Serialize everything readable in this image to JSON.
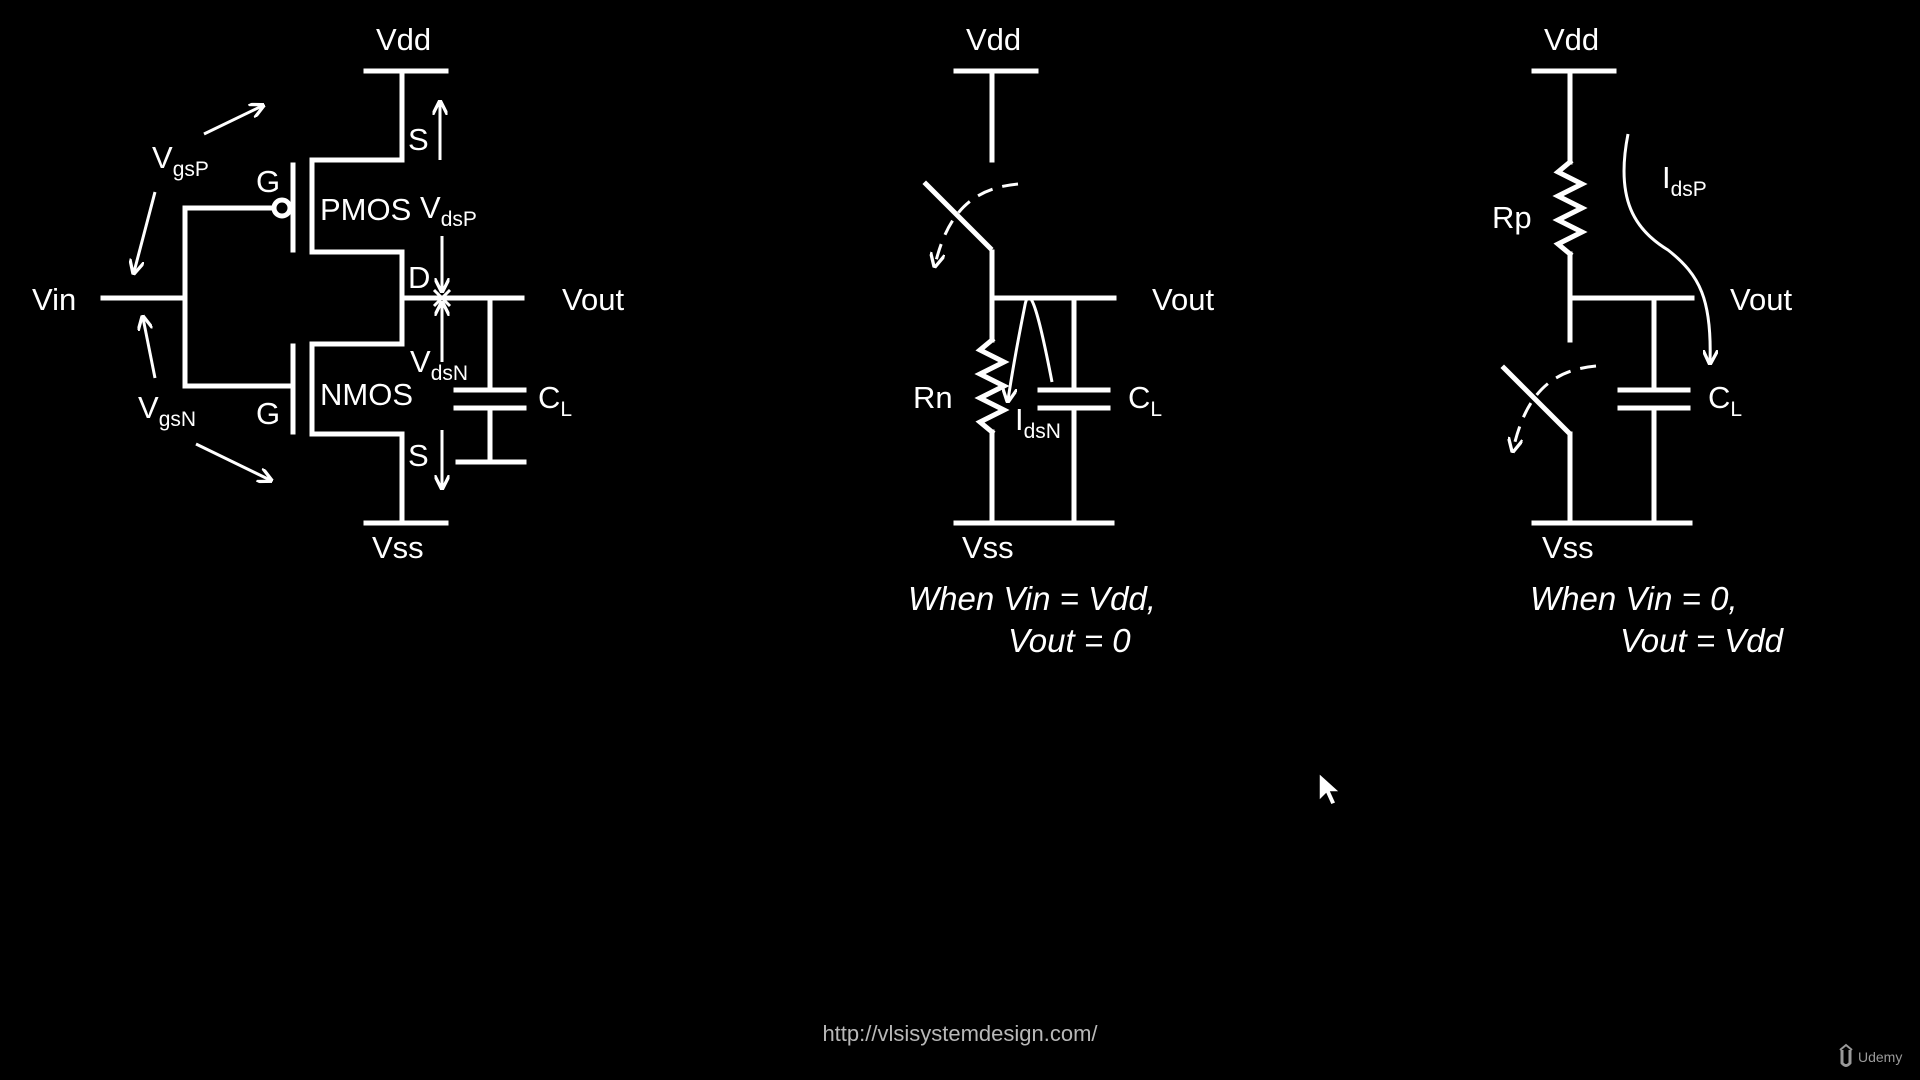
{
  "colors": {
    "background": "#000000",
    "foreground": "#ffffff",
    "url": "#b8b8b8"
  },
  "inverter": {
    "vdd": "Vdd",
    "vss": "Vss",
    "vin": "Vin",
    "vout": "Vout",
    "pmos": "PMOS",
    "nmos": "NMOS",
    "gate_p": "G",
    "gate_n": "G",
    "source_p": "S",
    "source_n": "S",
    "drain": "D",
    "vgsp": {
      "main": "V",
      "sub": "gsP"
    },
    "vgsn": {
      "main": "V",
      "sub": "gsN"
    },
    "vdsp": {
      "main": "V",
      "sub": "dsP"
    },
    "vdsn": {
      "main": "V",
      "sub": "dsN"
    },
    "cl": {
      "main": "C",
      "sub": "L"
    }
  },
  "case_high": {
    "vdd": "Vdd",
    "vss": "Vss",
    "vout": "Vout",
    "resistor": "Rn",
    "current": {
      "main": "I",
      "sub": "dsN"
    },
    "cl": {
      "main": "C",
      "sub": "L"
    },
    "caption_line1": "When Vin = Vdd,",
    "caption_line2": "Vout = 0"
  },
  "case_low": {
    "vdd": "Vdd",
    "vss": "Vss",
    "vout": "Vout",
    "resistor": "Rp",
    "current": {
      "main": "I",
      "sub": "dsP"
    },
    "cl": {
      "main": "C",
      "sub": "L"
    },
    "caption_line1": "When Vin = 0,",
    "caption_line2": "Vout = Vdd"
  },
  "footer": {
    "url": "http://vlsisystemdesign.com/",
    "watermark": "Udemy"
  },
  "icons": {
    "cursor": "mouse-pointer-icon",
    "logo": "udemy-logo-icon"
  }
}
